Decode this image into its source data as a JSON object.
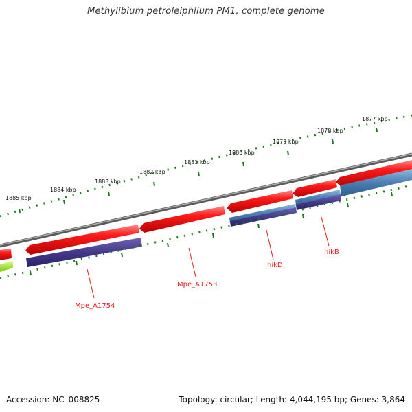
{
  "title": "Methylibium petroleiphilum PM1, complete genome",
  "footer": {
    "accession": "Accession: NC_008825",
    "summary": "Topology: circular; Length: 4,044,195 bp; Genes: 3,864"
  },
  "scale_labels": [
    "1877 kbp",
    "1878 kbp",
    "1879 kbp",
    "1880 kbp",
    "1881 kbp",
    "1882 kbp",
    "1883 kbp",
    "1884 kbp",
    "1885 kbp"
  ],
  "gene_labels": [
    "nikB",
    "nikD",
    "Mpe_A1753",
    "Mpe_A1754"
  ],
  "colors": {
    "backbone": "#7a7a7a",
    "cds": "#ff0000",
    "gene_purple": "#4b3f8f",
    "gene_blue": "#4f86b8",
    "gene_green": "#9be22a",
    "ticks": "#1a7a1a",
    "label": "#e21b1b"
  }
}
